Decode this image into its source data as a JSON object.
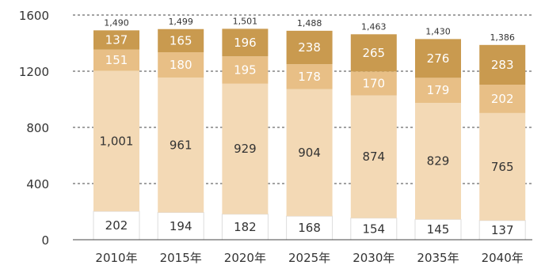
{
  "chart_data": {
    "type": "bar",
    "stacked": true,
    "categories": [
      "2010年",
      "2015年",
      "2020年",
      "2025年",
      "2030年",
      "2035年",
      "2040年"
    ],
    "series": [
      {
        "values": [
          202,
          194,
          182,
          168,
          154,
          145,
          137
        ],
        "color": "#ffffff",
        "label_color": "#333333"
      },
      {
        "values": [
          1001,
          961,
          929,
          904,
          874,
          829,
          765
        ],
        "color": "#f3d9b5",
        "label_color": "#333333"
      },
      {
        "values": [
          151,
          180,
          195,
          178,
          170,
          179,
          202
        ],
        "color": "#e8bf86",
        "label_color": "#ffffff"
      },
      {
        "values": [
          137,
          165,
          196,
          238,
          265,
          276,
          283
        ],
        "color": "#c99a4f",
        "label_color": "#ffffff"
      }
    ],
    "totals": [
      "1,490",
      "1,499",
      "1,501",
      "1,488",
      "1,463",
      "1,430",
      "1,386"
    ],
    "value_labels": [
      [
        "202",
        "194",
        "182",
        "168",
        "154",
        "145",
        "137"
      ],
      [
        "1,001",
        "961",
        "929",
        "904",
        "874",
        "829",
        "765"
      ],
      [
        "151",
        "180",
        "195",
        "178",
        "170",
        "179",
        "202"
      ],
      [
        "137",
        "165",
        "196",
        "238",
        "265",
        "276",
        "283"
      ]
    ],
    "y_ticks": [
      0,
      400,
      800,
      1200,
      1600
    ],
    "ylim": [
      0,
      1600
    ],
    "grid": "dashed",
    "title": "",
    "xlabel": "",
    "ylabel": ""
  }
}
